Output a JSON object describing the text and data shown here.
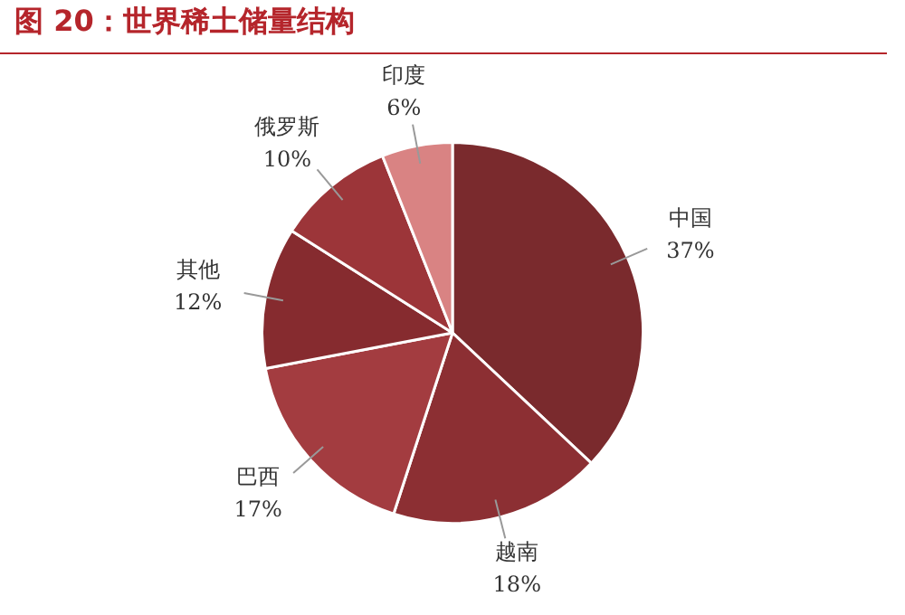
{
  "chart_data": {
    "type": "pie",
    "title": "图 20：世界稀土储量结构",
    "categories": [
      "中国",
      "越南",
      "巴西",
      "其他",
      "俄罗斯",
      "印度"
    ],
    "values": [
      37,
      18,
      17,
      12,
      10,
      6
    ],
    "value_labels": [
      "37%",
      "18%",
      "17%",
      "12%",
      "10%",
      "6%"
    ],
    "colors": [
      "#7a2a2d",
      "#8c2f33",
      "#a33c40",
      "#862b2f",
      "#9c3539",
      "#d98383"
    ],
    "legend": false
  }
}
